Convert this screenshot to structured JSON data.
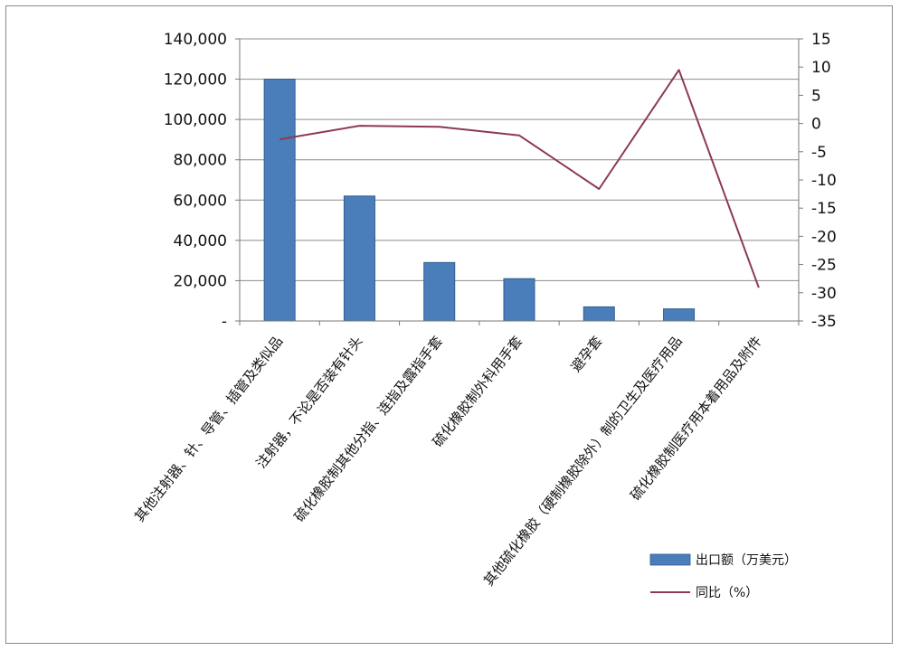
{
  "chart_data": {
    "type": "bar",
    "categories": [
      "其他注射器、针、导管、插管及类似品",
      "注射器，不论是否装有针头",
      "硫化橡胶制其他分指、连指及露指手套",
      "硫化橡胶制外科用手套",
      "避孕套",
      "其他硫化橡胶（硬制橡胶除外）制的卫生及医疗用品",
      "硫化橡胶制医疗用本着用品及附件"
    ],
    "series": [
      {
        "name": "出口额（万美元）",
        "type": "bar",
        "axis": "left",
        "color": "#4a7ebb",
        "values": [
          120000,
          62000,
          29000,
          21000,
          7000,
          6000,
          0
        ]
      },
      {
        "name": "同比（%）",
        "type": "line",
        "axis": "right",
        "color": "#8b3a52",
        "values": [
          -2.8,
          -0.4,
          -0.6,
          -2.1,
          -11.6,
          9.5,
          -29.1
        ]
      }
    ],
    "y_left": {
      "range": [
        0,
        140000
      ],
      "ticks": [
        "-",
        "20,000",
        "40,000",
        "60,000",
        "80,000",
        "100,000",
        "120,000",
        "140,000"
      ]
    },
    "y_right": {
      "range": [
        -35,
        15
      ],
      "ticks": [
        "-35",
        "-30",
        "-25",
        "-20",
        "-15",
        "-10",
        "-5",
        "0",
        "5",
        "10",
        "15"
      ]
    },
    "grid": true,
    "legend_position": "bottom-right"
  }
}
